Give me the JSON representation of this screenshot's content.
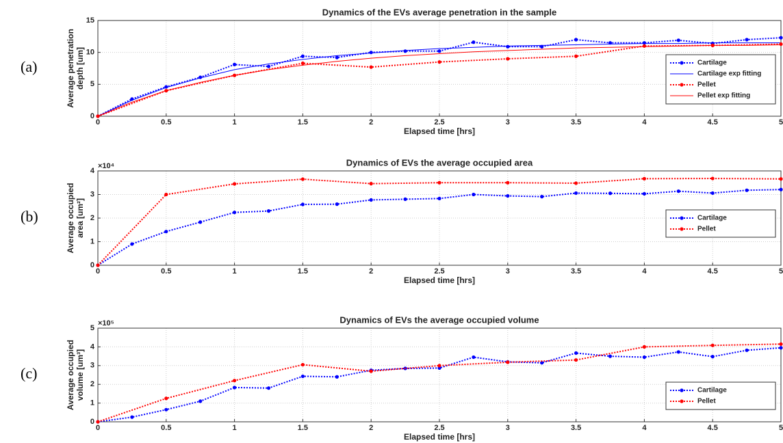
{
  "chart_data": [
    {
      "type": "line",
      "panel_label": "(a)",
      "title": "Dynamics of the EVs average penetration in the sample",
      "xlabel": "Elapsed time [hrs]",
      "ylabel": [
        "Average penetration",
        "depth [um]"
      ],
      "xlim": [
        0,
        5
      ],
      "xticks": [
        0,
        0.5,
        1,
        1.5,
        2,
        2.5,
        3,
        3.5,
        4,
        4.5,
        5
      ],
      "ylim": [
        0,
        15
      ],
      "yticks": [
        0,
        5,
        10,
        15
      ],
      "grid": true,
      "legend": "lower right",
      "series": [
        {
          "name": "Cartilage",
          "color": "#0000ff",
          "style": "dotted",
          "marker": true,
          "x": [
            0,
            0.25,
            0.5,
            0.75,
            1,
            1.25,
            1.5,
            1.75,
            2,
            2.25,
            2.5,
            2.75,
            3,
            3.25,
            3.5,
            3.75,
            4,
            4.25,
            4.5,
            4.75,
            5
          ],
          "values": [
            0,
            2.7,
            4.6,
            6.1,
            8.1,
            7.8,
            9.4,
            9.2,
            10.0,
            10.2,
            10.2,
            11.6,
            10.9,
            10.9,
            12.0,
            11.5,
            11.5,
            11.9,
            11.4,
            12.0,
            12.3
          ]
        },
        {
          "name": "Cartilage exp fitting",
          "color": "#0000ff",
          "style": "solid",
          "marker": false,
          "x": [
            0,
            0.25,
            0.5,
            0.75,
            1,
            1.25,
            1.5,
            1.75,
            2,
            2.25,
            2.5,
            2.75,
            3,
            3.25,
            3.5,
            3.75,
            4,
            4.25,
            4.5,
            4.75,
            5
          ],
          "values": [
            0,
            2.5,
            4.5,
            6.0,
            7.3,
            8.2,
            8.9,
            9.5,
            9.9,
            10.3,
            10.6,
            10.8,
            11.0,
            11.1,
            11.2,
            11.3,
            11.4,
            11.4,
            11.5,
            11.5,
            11.5
          ]
        },
        {
          "name": "Pellet",
          "color": "#ff0000",
          "style": "dotted",
          "marker": true,
          "x": [
            0,
            0.5,
            1,
            1.5,
            2,
            2.5,
            3,
            3.5,
            4,
            4.5,
            5
          ],
          "values": [
            0,
            4.0,
            6.4,
            8.3,
            7.7,
            8.5,
            9.0,
            9.4,
            11.0,
            11.1,
            11.3
          ]
        },
        {
          "name": "Pellet exp fitting",
          "color": "#ff0000",
          "style": "solid",
          "marker": false,
          "x": [
            0,
            0.25,
            0.5,
            0.75,
            1,
            1.25,
            1.5,
            1.75,
            2,
            2.25,
            2.5,
            2.75,
            3,
            3.25,
            3.5,
            3.75,
            4,
            4.25,
            4.5,
            4.75,
            5
          ],
          "values": [
            0,
            2.2,
            4.0,
            5.3,
            6.4,
            7.3,
            8.0,
            8.6,
            9.1,
            9.5,
            9.8,
            10.1,
            10.3,
            10.5,
            10.7,
            10.8,
            10.9,
            11.0,
            11.1,
            11.1,
            11.2
          ]
        }
      ]
    },
    {
      "type": "line",
      "panel_label": "(b)",
      "title": "Dynamics of EVs the average occupied area",
      "xlabel": "Elapsed time [hrs]",
      "ylabel": [
        "Average occupied",
        "area [um²]"
      ],
      "y_multiplier": "×10⁴",
      "xlim": [
        0,
        5
      ],
      "xticks": [
        0,
        0.5,
        1,
        1.5,
        2,
        2.5,
        3,
        3.5,
        4,
        4.5,
        5
      ],
      "ylim": [
        0,
        40000
      ],
      "yticks": [
        0,
        {
          "value": 10000,
          "label": "1"
        },
        {
          "value": 20000,
          "label": "2"
        },
        {
          "value": 30000,
          "label": "3"
        },
        {
          "value": 40000,
          "label": "4"
        }
      ],
      "grid": true,
      "legend": "right",
      "series": [
        {
          "name": "Cartilage",
          "color": "#0000ff",
          "style": "dotted",
          "marker": true,
          "x": [
            0,
            0.25,
            0.5,
            0.75,
            1,
            1.25,
            1.5,
            1.75,
            2,
            2.25,
            2.5,
            2.75,
            3,
            3.25,
            3.5,
            3.75,
            4,
            4.25,
            4.5,
            4.75,
            5
          ],
          "values": [
            0,
            9000,
            14300,
            18300,
            22400,
            23000,
            25800,
            25900,
            27700,
            28000,
            28300,
            30000,
            29400,
            29100,
            30600,
            30500,
            30300,
            31400,
            30600,
            31800,
            32100
          ]
        },
        {
          "name": "Pellet",
          "color": "#ff0000",
          "style": "dotted",
          "marker": true,
          "x": [
            0,
            0.5,
            1,
            1.5,
            2,
            2.5,
            3,
            3.5,
            4,
            4.5,
            5
          ],
          "values": [
            0,
            30000,
            34500,
            36500,
            34600,
            35000,
            35000,
            34800,
            36700,
            36800,
            36600
          ]
        }
      ]
    },
    {
      "type": "line",
      "panel_label": "(c)",
      "title": "Dynamics of EVs the average occupied volume",
      "xlabel": "Elapsed time [hrs]",
      "ylabel": [
        "Average occupied",
        "volume [um³]"
      ],
      "y_multiplier": "×10⁵",
      "xlim": [
        0,
        5
      ],
      "xticks": [
        0,
        0.5,
        1,
        1.5,
        2,
        2.5,
        3,
        3.5,
        4,
        4.5,
        5
      ],
      "ylim": [
        0,
        500000
      ],
      "yticks": [
        0,
        {
          "value": 100000,
          "label": "1"
        },
        {
          "value": 200000,
          "label": "2"
        },
        {
          "value": 300000,
          "label": "3"
        },
        {
          "value": 400000,
          "label": "4"
        },
        {
          "value": 500000,
          "label": "5"
        }
      ],
      "grid": true,
      "legend": "lower right",
      "series": [
        {
          "name": "Cartilage",
          "color": "#0000ff",
          "style": "dotted",
          "marker": true,
          "x": [
            0,
            0.25,
            0.5,
            0.75,
            1,
            1.25,
            1.5,
            1.75,
            2,
            2.25,
            2.5,
            2.75,
            3,
            3.25,
            3.5,
            3.75,
            4,
            4.25,
            4.5,
            4.75,
            5
          ],
          "values": [
            0,
            25000,
            65000,
            110000,
            183000,
            180000,
            243000,
            240000,
            275000,
            285000,
            287000,
            345000,
            320000,
            315000,
            367000,
            350000,
            345000,
            373000,
            348000,
            382000,
            395000
          ]
        },
        {
          "name": "Pellet",
          "color": "#ff0000",
          "style": "dotted",
          "marker": true,
          "x": [
            0,
            0.5,
            1,
            1.5,
            2,
            2.5,
            3,
            3.5,
            4,
            4.5,
            5
          ],
          "values": [
            0,
            125000,
            220000,
            305000,
            270000,
            300000,
            318000,
            330000,
            400000,
            408000,
            415000
          ]
        }
      ]
    }
  ]
}
